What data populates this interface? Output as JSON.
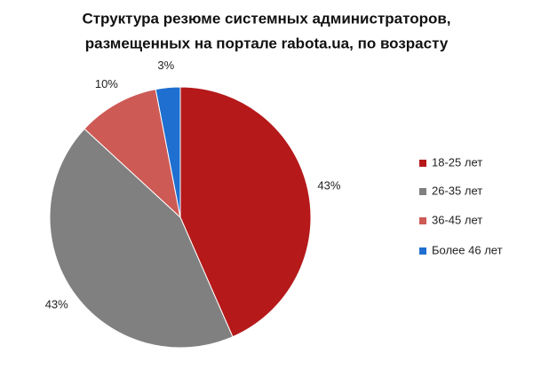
{
  "chart_data": {
    "type": "pie",
    "title": [
      "Структура резюме системных администраторов,",
      "размещенных на портале rabota.ua, по возрасту"
    ],
    "categories": [
      "18-25 лет",
      "26-35 лет",
      "36-45 лет",
      "Более 46 лет"
    ],
    "values": [
      43,
      43,
      10,
      3
    ],
    "value_labels": [
      "43%",
      "43%",
      "10%",
      "3%"
    ],
    "colors": [
      "#b5191a",
      "#808080",
      "#cd5a55",
      "#1f6fd0"
    ],
    "legend": "right"
  }
}
